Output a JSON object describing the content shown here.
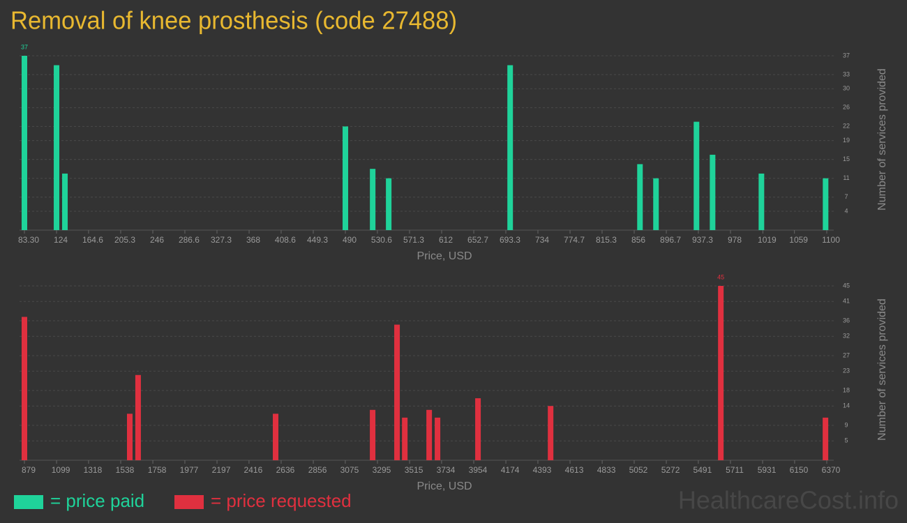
{
  "chart_data": [
    {
      "type": "bar",
      "title": "Removal of knee prosthesis (code 27488)",
      "x_label": "Price, USD",
      "y_label": "Number of services provided",
      "x": [
        83.3,
        124,
        134.6,
        490,
        524.6,
        544.9,
        698.8,
        863.3,
        883.6,
        934.9,
        955.3,
        1017.2,
        1098.5
      ],
      "series": [
        {
          "name": "= price paid",
          "color": "#1fd39a",
          "values": [
            37,
            35,
            12,
            22,
            13,
            11,
            35,
            14,
            11,
            23,
            16,
            12,
            11
          ],
          "value_labels": [
            "37",
            null,
            null,
            null,
            null,
            null,
            null,
            null,
            null,
            null,
            null,
            null,
            null
          ]
        }
      ],
      "xlim": [
        83.3,
        1100
      ],
      "xticks": [
        {
          "value": 83.3,
          "label": "83.30"
        },
        124,
        164.6,
        205.3,
        246,
        286.6,
        327.3,
        368,
        408.6,
        449.3,
        490,
        530.6,
        571.3,
        612,
        652.7,
        693.3,
        734,
        774.7,
        815.3,
        856,
        896.7,
        937.3,
        978,
        1019,
        1059,
        1100
      ],
      "ylim": [
        0,
        37
      ],
      "yticks": [
        4,
        7,
        11,
        15,
        19,
        22,
        26,
        30,
        33,
        37
      ],
      "grid": true
    },
    {
      "type": "bar",
      "x_label": "Price, USD",
      "y_label": "Number of services provided",
      "x": [
        879,
        1600,
        1657,
        2598,
        3262,
        3429,
        3482,
        3649,
        3706,
        3983,
        4480,
        5645,
        6361
      ],
      "series": [
        {
          "name": "= price requested",
          "color": "#e0303f",
          "values": [
            37,
            12,
            22,
            12,
            13,
            35,
            11,
            13,
            11,
            16,
            14,
            45,
            11
          ],
          "value_labels": [
            null,
            null,
            null,
            null,
            null,
            null,
            null,
            null,
            null,
            null,
            null,
            "45",
            null
          ]
        }
      ],
      "xlim": [
        879,
        6370
      ],
      "xticks": [
        879,
        1099,
        1318,
        1538,
        1758,
        1977,
        2197,
        2416,
        2636,
        2856,
        3075,
        3295,
        3515,
        3734,
        3954,
        4174,
        4393,
        4613,
        4833,
        5052,
        5272,
        5491,
        5711,
        5931,
        6150,
        6370
      ],
      "ylim": [
        0,
        45
      ],
      "yticks": [
        5,
        9,
        14,
        18,
        23,
        27,
        32,
        36,
        41,
        45
      ],
      "grid": true
    }
  ],
  "watermark": "HealthcareCost.info"
}
